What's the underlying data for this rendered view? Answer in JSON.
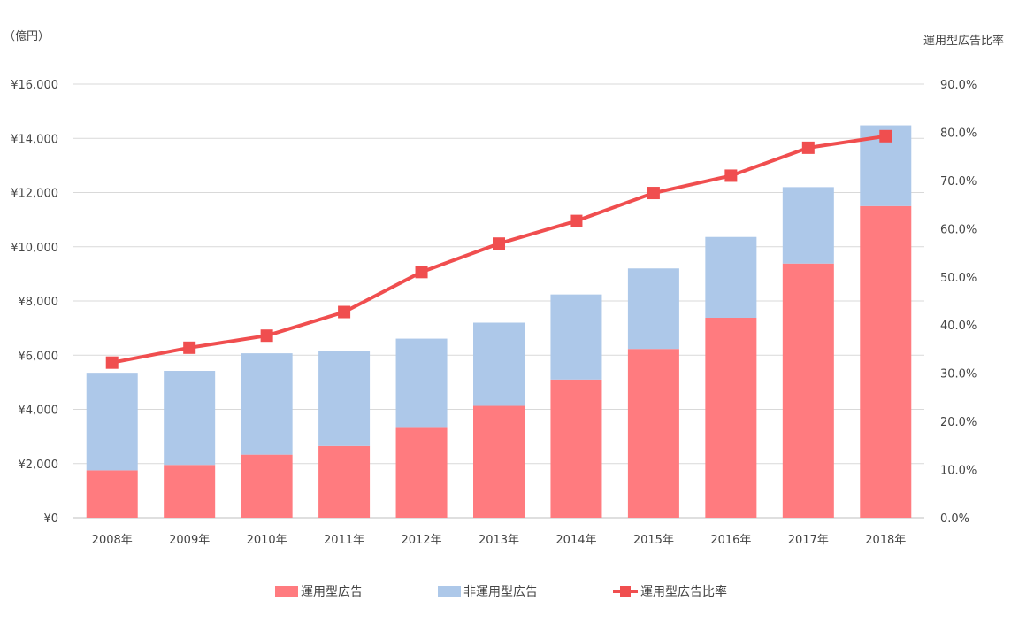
{
  "chart_data": {
    "type": "bar",
    "stacked": true,
    "categories": [
      "2008年",
      "2009年",
      "2010年",
      "2011年",
      "2012年",
      "2013年",
      "2014年",
      "2015年",
      "2016年",
      "2017年",
      "2018年"
    ],
    "series": [
      {
        "name": "運用型広告",
        "type": "bar",
        "axis": "left",
        "color": "#ff7b7f",
        "values": [
          1750,
          1950,
          2330,
          2650,
          3350,
          4130,
          5100,
          6230,
          7380,
          9380,
          11500
        ]
      },
      {
        "name": "非運用型広告",
        "type": "bar",
        "axis": "left",
        "color": "#adc8e9",
        "values": [
          3600,
          3470,
          3740,
          3510,
          3260,
          3070,
          3140,
          2970,
          2980,
          2820,
          2980
        ]
      },
      {
        "name": "運用型広告比率",
        "type": "line",
        "axis": "right",
        "color": "#f04e4f",
        "marker": "square",
        "values": [
          32.2,
          35.3,
          37.8,
          42.7,
          51.0,
          56.9,
          61.6,
          67.4,
          71.0,
          76.8,
          79.2
        ]
      }
    ],
    "ylabel": "（億円）",
    "y2label": "運用型広告比率",
    "ylim": [
      0,
      16000
    ],
    "y2lim": [
      0,
      90
    ],
    "yticks": [
      "¥0",
      "¥2,000",
      "¥4,000",
      "¥6,000",
      "¥8,000",
      "¥10,000",
      "¥12,000",
      "¥14,000",
      "¥16,000"
    ],
    "y2ticks": [
      "0.0%",
      "10.0%",
      "20.0%",
      "30.0%",
      "40.0%",
      "50.0%",
      "60.0%",
      "70.0%",
      "80.0%",
      "90.0%"
    ],
    "grid": true,
    "legend_position": "bottom"
  }
}
